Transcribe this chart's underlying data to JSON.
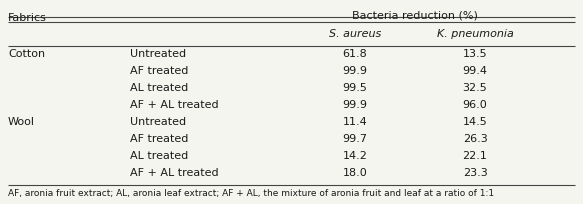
{
  "title": "Bacteria reduction (%)",
  "col_headers": [
    "S. aureus",
    "K. pneumonia"
  ],
  "fabrics_label": "Fabrics",
  "rows": [
    {
      "fabric": "Cotton",
      "treatment": "Untreated",
      "s_aureus": "61.8",
      "k_pneumonia": "13.5"
    },
    {
      "fabric": "",
      "treatment": "AF treated",
      "s_aureus": "99.9",
      "k_pneumonia": "99.4"
    },
    {
      "fabric": "",
      "treatment": "AL treated",
      "s_aureus": "99.5",
      "k_pneumonia": "32.5"
    },
    {
      "fabric": "",
      "treatment": "AF + AL treated",
      "s_aureus": "99.9",
      "k_pneumonia": "96.0"
    },
    {
      "fabric": "Wool",
      "treatment": "Untreated",
      "s_aureus": "11.4",
      "k_pneumonia": "14.5"
    },
    {
      "fabric": "",
      "treatment": "AF treated",
      "s_aureus": "99.7",
      "k_pneumonia": "26.3"
    },
    {
      "fabric": "",
      "treatment": "AL treated",
      "s_aureus": "14.2",
      "k_pneumonia": "22.1"
    },
    {
      "fabric": "",
      "treatment": "AF + AL treated",
      "s_aureus": "18.0",
      "k_pneumonia": "23.3"
    }
  ],
  "footnote": "AF, aronia fruit extract; AL, aronia leaf extract; AF + AL, the mixture of aronia fruit and leaf at a ratio of 1:1",
  "title_fontsize": 8.0,
  "header_fontsize": 8.0,
  "body_fontsize": 8.0,
  "footnote_fontsize": 6.5,
  "text_color": "#1a1a1a",
  "line_color": "#444444",
  "bg_color": "#f5f5f0"
}
